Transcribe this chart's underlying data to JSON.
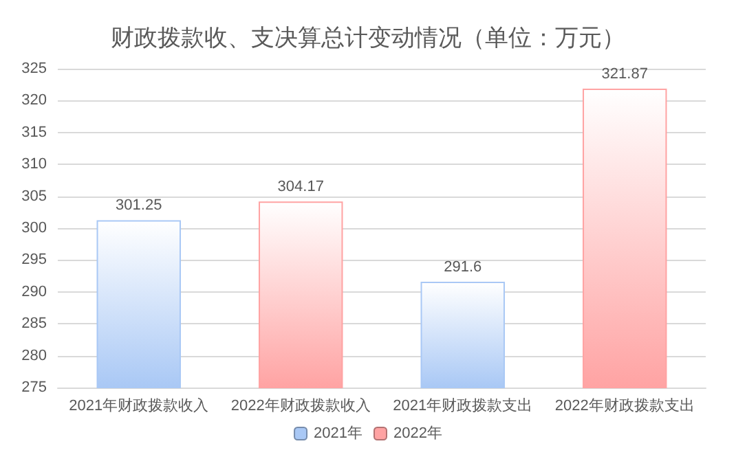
{
  "chart_data": {
    "type": "bar",
    "title": "财政拨款收、支决算总计变动情况（单位：万元）",
    "categories": [
      "2021年财政拨款收入",
      "2022年财政拨款收入",
      "2021年财政拨款支出",
      "2022年财政拨款支出"
    ],
    "series": [
      {
        "name": "2021年",
        "color": "#a9c8f5",
        "values": [
          301.25,
          null,
          291.6,
          null
        ]
      },
      {
        "name": "2022年",
        "color": "#ffa3a3",
        "values": [
          null,
          304.17,
          null,
          321.87
        ]
      }
    ],
    "stacked": true,
    "ylim": [
      275,
      325
    ],
    "yticks": [
      275,
      280,
      285,
      290,
      295,
      300,
      305,
      310,
      315,
      320,
      325
    ],
    "grid": "y",
    "legend": "bottom",
    "data_labels": true
  }
}
